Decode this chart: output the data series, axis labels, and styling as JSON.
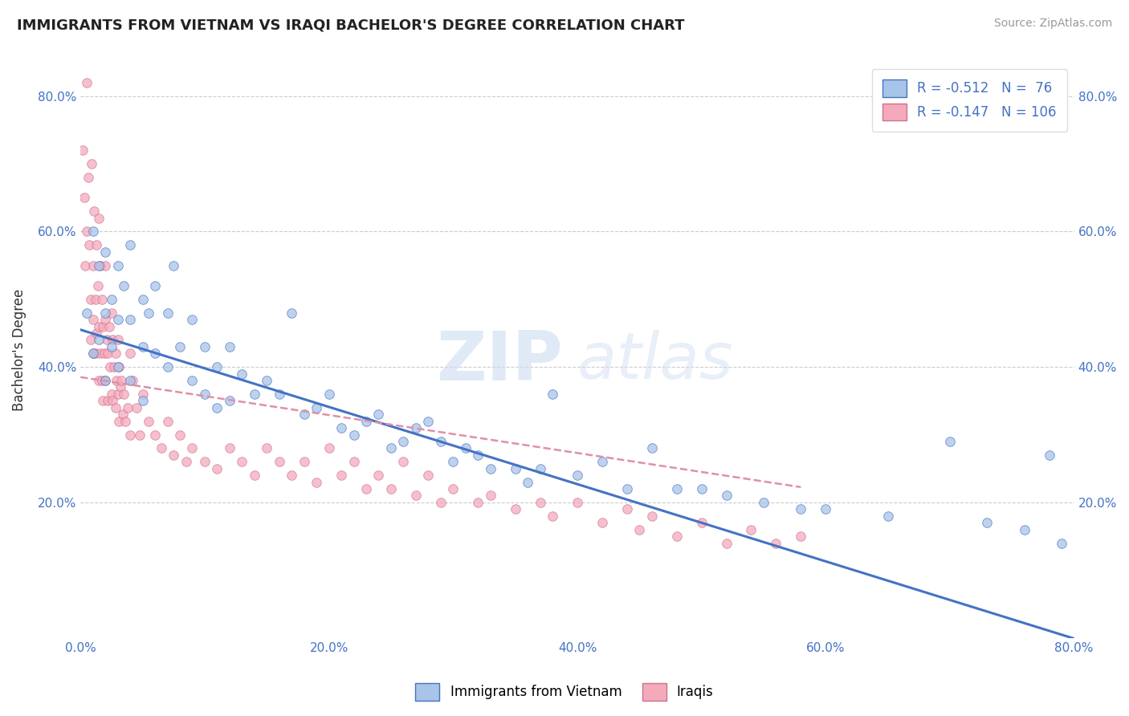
{
  "title": "IMMIGRANTS FROM VIETNAM VS IRAQI BACHELOR'S DEGREE CORRELATION CHART",
  "source": "Source: ZipAtlas.com",
  "ylabel": "Bachelor's Degree",
  "legend_label_1": "Immigrants from Vietnam",
  "legend_label_2": "Iraqis",
  "R1": -0.512,
  "N1": 76,
  "R2": -0.147,
  "N2": 106,
  "color_blue": "#A8C4E8",
  "color_pink": "#F4AABB",
  "line_color_blue": "#4472C4",
  "line_color_dashed": "#E090A8",
  "watermark_zip": "ZIP",
  "watermark_atlas": "atlas",
  "xmin": 0.0,
  "xmax": 0.8,
  "ymin": 0.0,
  "ymax": 0.85,
  "xtick_labels": [
    "0.0%",
    "20.0%",
    "40.0%",
    "60.0%",
    "80.0%"
  ],
  "xtick_vals": [
    0.0,
    0.2,
    0.4,
    0.6,
    0.8
  ],
  "ytick_labels": [
    "20.0%",
    "40.0%",
    "60.0%",
    "80.0%"
  ],
  "ytick_vals": [
    0.2,
    0.4,
    0.6,
    0.8
  ],
  "blue_intercept": 0.455,
  "blue_slope": -0.57,
  "pink_intercept": 0.385,
  "pink_slope": -0.28,
  "blue_x": [
    0.005,
    0.01,
    0.01,
    0.015,
    0.015,
    0.02,
    0.02,
    0.02,
    0.025,
    0.025,
    0.03,
    0.03,
    0.03,
    0.035,
    0.04,
    0.04,
    0.04,
    0.05,
    0.05,
    0.05,
    0.055,
    0.06,
    0.06,
    0.07,
    0.07,
    0.075,
    0.08,
    0.09,
    0.09,
    0.1,
    0.1,
    0.11,
    0.11,
    0.12,
    0.12,
    0.13,
    0.14,
    0.15,
    0.16,
    0.17,
    0.18,
    0.19,
    0.2,
    0.21,
    0.22,
    0.23,
    0.24,
    0.25,
    0.26,
    0.27,
    0.28,
    0.29,
    0.3,
    0.31,
    0.32,
    0.33,
    0.35,
    0.36,
    0.37,
    0.38,
    0.4,
    0.42,
    0.44,
    0.46,
    0.48,
    0.5,
    0.52,
    0.55,
    0.58,
    0.6,
    0.65,
    0.7,
    0.73,
    0.76,
    0.78,
    0.79
  ],
  "blue_y": [
    0.48,
    0.6,
    0.42,
    0.55,
    0.44,
    0.57,
    0.48,
    0.38,
    0.5,
    0.43,
    0.55,
    0.47,
    0.4,
    0.52,
    0.58,
    0.47,
    0.38,
    0.5,
    0.43,
    0.35,
    0.48,
    0.52,
    0.42,
    0.48,
    0.4,
    0.55,
    0.43,
    0.47,
    0.38,
    0.43,
    0.36,
    0.4,
    0.34,
    0.43,
    0.35,
    0.39,
    0.36,
    0.38,
    0.36,
    0.48,
    0.33,
    0.34,
    0.36,
    0.31,
    0.3,
    0.32,
    0.33,
    0.28,
    0.29,
    0.31,
    0.32,
    0.29,
    0.26,
    0.28,
    0.27,
    0.25,
    0.25,
    0.23,
    0.25,
    0.36,
    0.24,
    0.26,
    0.22,
    0.28,
    0.22,
    0.22,
    0.21,
    0.2,
    0.19,
    0.19,
    0.18,
    0.29,
    0.17,
    0.16,
    0.27,
    0.14
  ],
  "pink_x": [
    0.002,
    0.003,
    0.004,
    0.005,
    0.005,
    0.006,
    0.007,
    0.008,
    0.008,
    0.009,
    0.01,
    0.01,
    0.01,
    0.011,
    0.012,
    0.012,
    0.013,
    0.013,
    0.014,
    0.015,
    0.015,
    0.015,
    0.016,
    0.016,
    0.017,
    0.017,
    0.018,
    0.018,
    0.019,
    0.02,
    0.02,
    0.02,
    0.021,
    0.022,
    0.022,
    0.023,
    0.024,
    0.025,
    0.025,
    0.026,
    0.026,
    0.027,
    0.028,
    0.028,
    0.029,
    0.03,
    0.03,
    0.031,
    0.031,
    0.032,
    0.033,
    0.034,
    0.035,
    0.036,
    0.038,
    0.04,
    0.04,
    0.042,
    0.045,
    0.048,
    0.05,
    0.055,
    0.06,
    0.065,
    0.07,
    0.075,
    0.08,
    0.085,
    0.09,
    0.1,
    0.11,
    0.12,
    0.13,
    0.14,
    0.15,
    0.16,
    0.17,
    0.18,
    0.19,
    0.2,
    0.21,
    0.22,
    0.23,
    0.24,
    0.25,
    0.26,
    0.27,
    0.28,
    0.29,
    0.3,
    0.32,
    0.33,
    0.35,
    0.37,
    0.38,
    0.4,
    0.42,
    0.44,
    0.45,
    0.46,
    0.48,
    0.5,
    0.52,
    0.54,
    0.56,
    0.58
  ],
  "pink_y": [
    0.72,
    0.65,
    0.55,
    0.82,
    0.6,
    0.68,
    0.58,
    0.5,
    0.44,
    0.7,
    0.55,
    0.47,
    0.42,
    0.63,
    0.5,
    0.42,
    0.58,
    0.45,
    0.52,
    0.62,
    0.46,
    0.38,
    0.55,
    0.42,
    0.5,
    0.38,
    0.46,
    0.35,
    0.42,
    0.55,
    0.47,
    0.38,
    0.44,
    0.42,
    0.35,
    0.46,
    0.4,
    0.48,
    0.36,
    0.44,
    0.35,
    0.4,
    0.42,
    0.34,
    0.38,
    0.44,
    0.36,
    0.4,
    0.32,
    0.37,
    0.38,
    0.33,
    0.36,
    0.32,
    0.34,
    0.42,
    0.3,
    0.38,
    0.34,
    0.3,
    0.36,
    0.32,
    0.3,
    0.28,
    0.32,
    0.27,
    0.3,
    0.26,
    0.28,
    0.26,
    0.25,
    0.28,
    0.26,
    0.24,
    0.28,
    0.26,
    0.24,
    0.26,
    0.23,
    0.28,
    0.24,
    0.26,
    0.22,
    0.24,
    0.22,
    0.26,
    0.21,
    0.24,
    0.2,
    0.22,
    0.2,
    0.21,
    0.19,
    0.2,
    0.18,
    0.2,
    0.17,
    0.19,
    0.16,
    0.18,
    0.15,
    0.17,
    0.14,
    0.16,
    0.14,
    0.15
  ]
}
